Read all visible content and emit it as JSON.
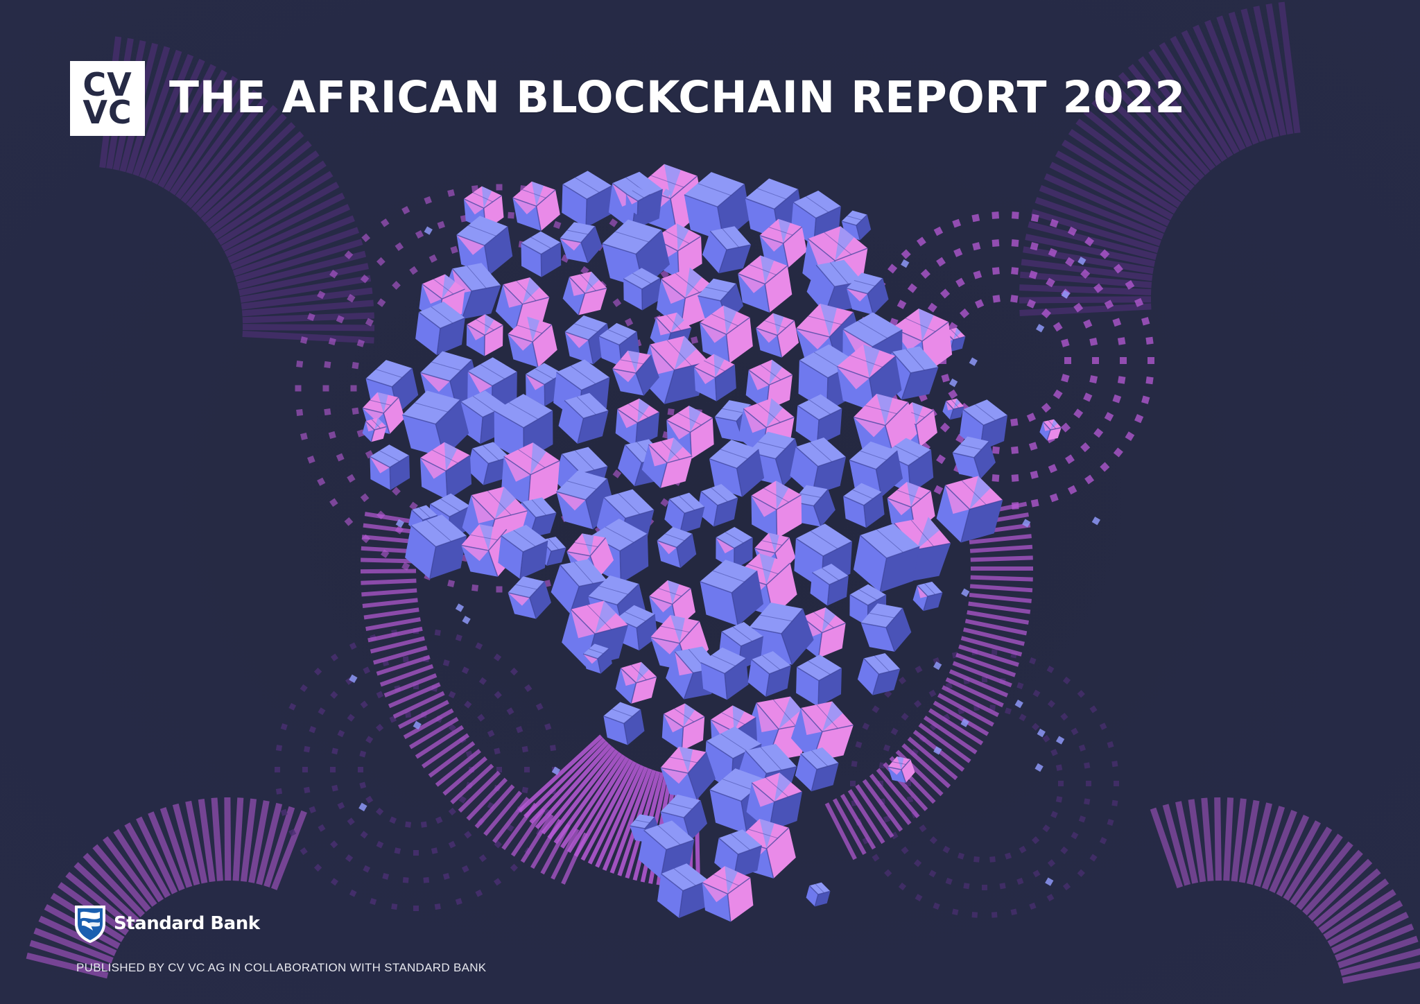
{
  "header": {
    "logo_line1": "CV",
    "logo_line2": "VC",
    "title": "THE AFRICAN BLOCKCHAIN REPORT 2022"
  },
  "footer": {
    "partner_name": "Standard Bank",
    "published_by": "PUBLISHED BY CV VC AG IN COLLABORATION WITH STANDARD BANK"
  },
  "artwork": {
    "description": "Africa-shaped cluster of blue and pink origami cubes with radial purple ring patterns",
    "icons": [
      "cvvc-logo",
      "standard-bank-shield-icon",
      "cube-cluster-illustration"
    ]
  },
  "colors": {
    "background": "#262a45",
    "cube_blue": "#6f79ee",
    "cube_blue_dark": "#4a53b8",
    "cube_blue_light": "#8e98f7",
    "cube_pink": "#e98ae8",
    "ring_purple": "#b75ad6",
    "ring_purple_faint": "#4b2f73",
    "text": "#ffffff",
    "sb_blue": "#1a5fb0"
  }
}
